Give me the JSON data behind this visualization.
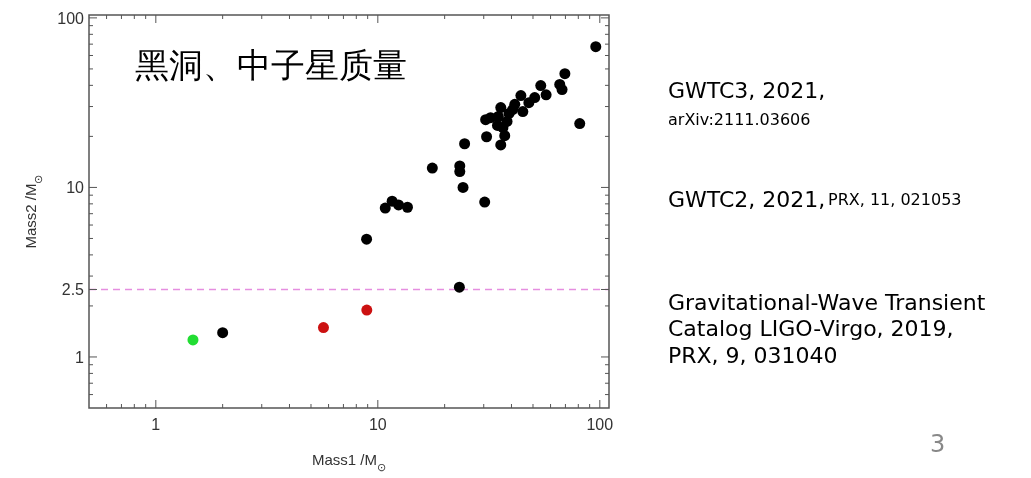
{
  "chart_data": {
    "type": "scatter",
    "title": "黑洞、中子星质量",
    "xlabel": "Mass1 /M$_{⊙}$",
    "ylabel": "Mass2 /M$_{⊙}$",
    "log": "xy",
    "marker": "circle",
    "xlim": [
      0.5,
      110
    ],
    "ylim": [
      0.5,
      104
    ],
    "xticks": [
      {
        "value": 0.6,
        "label": null
      },
      {
        "value": 0.7,
        "label": null
      },
      {
        "value": 0.8,
        "label": null
      },
      {
        "value": 0.9,
        "label": null
      },
      1,
      {
        "value": 2,
        "label": null
      },
      {
        "value": 3,
        "label": null
      },
      {
        "value": 4,
        "label": null
      },
      {
        "value": 5,
        "label": null
      },
      {
        "value": 6,
        "label": null
      },
      {
        "value": 7,
        "label": null
      },
      {
        "value": 8,
        "label": null
      },
      {
        "value": 9,
        "label": null
      },
      10,
      {
        "value": 20,
        "label": null
      },
      {
        "value": 30,
        "label": null
      },
      {
        "value": 40,
        "label": null
      },
      {
        "value": 50,
        "label": null
      },
      {
        "value": 60,
        "label": null
      },
      {
        "value": 70,
        "label": null
      },
      {
        "value": 80,
        "label": null
      },
      {
        "value": 90,
        "label": null
      },
      100
    ],
    "yticks": [
      {
        "value": 0.6,
        "label": null
      },
      {
        "value": 0.7,
        "label": null
      },
      {
        "value": 0.8,
        "label": null
      },
      {
        "value": 0.9,
        "label": null
      },
      1,
      {
        "value": 2,
        "label": null
      },
      2.5,
      {
        "value": 3,
        "label": null
      },
      {
        "value": 4,
        "label": null
      },
      {
        "value": 5,
        "label": null
      },
      {
        "value": 6,
        "label": null
      },
      {
        "value": 7,
        "label": null
      },
      {
        "value": 8,
        "label": null
      },
      {
        "value": 9,
        "label": null
      },
      10,
      {
        "value": 20,
        "label": null
      },
      {
        "value": 30,
        "label": null
      },
      {
        "value": 40,
        "label": null
      },
      {
        "value": 50,
        "label": null
      },
      {
        "value": 60,
        "label": null
      },
      {
        "value": 70,
        "label": null
      },
      {
        "value": 80,
        "label": null
      },
      {
        "value": 90,
        "label": null
      },
      100
    ],
    "series": [
      {
        "color": "#000000",
        "x": [
          2.0,
          23.3,
          8.9,
          10.8,
          11.6,
          12.4,
          13.6,
          17.6,
          23.4,
          23.4,
          24.2,
          30.3,
          24.6,
          30.9,
          35.8,
          30.6,
          32.2,
          34.6,
          34.9,
          35.8,
          37.3,
          38.2,
          39.0,
          40.5,
          41.4,
          45.0,
          44.1,
          36.6,
          47.9,
          50.9,
          54.2,
          57.3,
          66.0,
          67.6,
          69.6,
          81.2,
          95.9
        ],
        "values": [
          1.39,
          2.58,
          4.95,
          7.56,
          8.29,
          7.89,
          7.64,
          13.0,
          13.4,
          12.4,
          10.0,
          8.2,
          18.1,
          19.9,
          17.8,
          25.1,
          25.8,
          23.2,
          26.2,
          29.6,
          20.2,
          24.5,
          27.3,
          28.8,
          30.9,
          28.0,
          34.8,
          22.5,
          31.6,
          33.9,
          39.9,
          35.2,
          40.5,
          37.8,
          46.9,
          23.8,
          67.6
        ]
      },
      {
        "color": "#22dd33",
        "x": [
          1.47
        ],
        "values": [
          1.26
        ]
      },
      {
        "color": "#cc1111",
        "x": [
          5.69,
          8.92
        ],
        "values": [
          1.49,
          1.89
        ]
      }
    ],
    "ref_lines": [
      {
        "axis": "y",
        "value": 2.5,
        "color": "#e58ee0",
        "line_style": "dashed"
      }
    ],
    "annotations": [
      "GWTC3, 2021,",
      "arXiv:2111.03606",
      "GWTC2, 2021,",
      "PRX, 11, 021053",
      "Gravitational-Wave Transient Catalog LIGO-Virgo, 2019, PRX, 9, 031040",
      "3"
    ]
  }
}
